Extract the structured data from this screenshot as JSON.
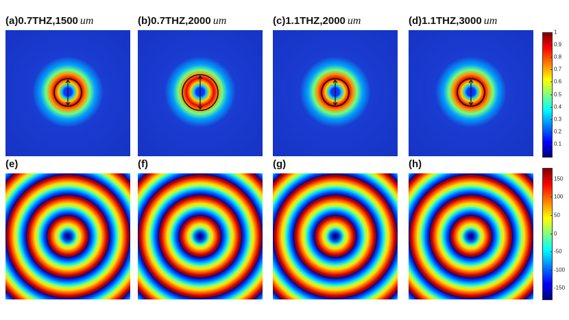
{
  "panels": [
    {
      "label": "(a)0.7THZ,1500",
      "unit": "um"
    },
    {
      "label": "(b)0.7THZ,2000",
      "unit": "um"
    },
    {
      "label": "(c)1.1THZ,2000",
      "unit": "um"
    },
    {
      "label": "(d)1.1THZ,3000",
      "unit": "um"
    },
    {
      "label": "(e)"
    },
    {
      "label": "(f)"
    },
    {
      "label": "(g)"
    },
    {
      "label": "(h)"
    }
  ],
  "colorbars": [
    {
      "lim": [
        0,
        1
      ],
      "ticks": [
        1,
        0.9,
        0.8,
        0.7,
        0.6,
        0.5,
        0.4,
        0.3,
        0.2,
        0.1
      ]
    },
    {
      "lim": [
        -180,
        180
      ],
      "ticks": [
        150,
        100,
        50,
        0,
        -50,
        -100,
        -150
      ]
    }
  ]
}
